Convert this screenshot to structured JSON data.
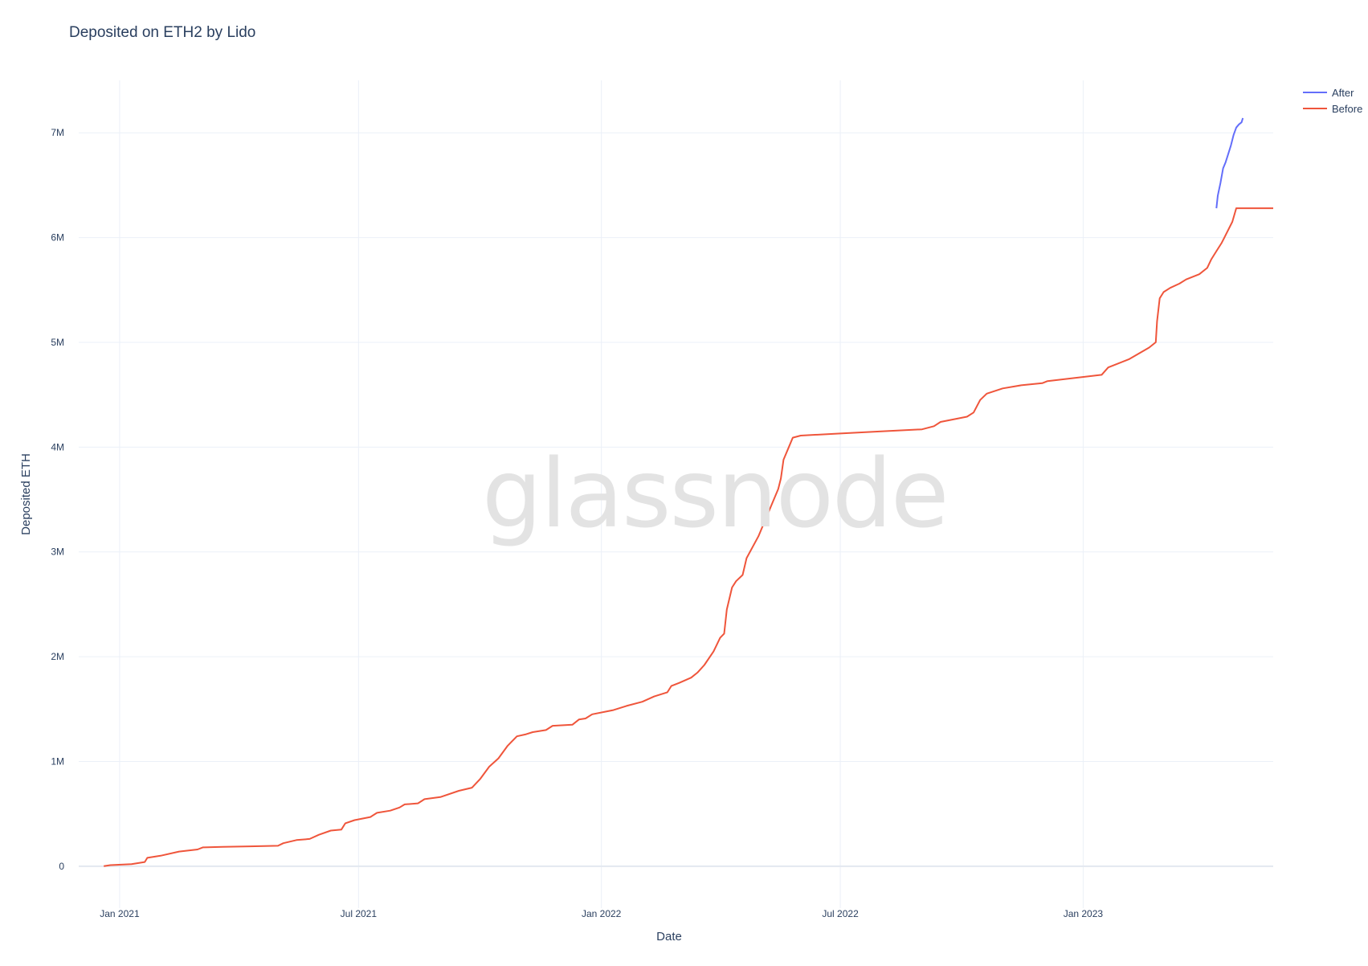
{
  "title": "Deposited on ETH2 by Lido",
  "watermark": "glassnode",
  "chart_data": {
    "type": "line",
    "title": "Deposited on ETH2 by Lido",
    "xlabel": "Date",
    "ylabel": "Deposited ETH",
    "x_range": [
      "2020-12-01",
      "2023-05-25"
    ],
    "ylim": [
      -400000,
      7500000
    ],
    "x_ticks": [
      {
        "date": "2021-01-01",
        "label": "Jan 2021"
      },
      {
        "date": "2021-07-01",
        "label": "Jul 2021"
      },
      {
        "date": "2022-01-01",
        "label": "Jan 2022"
      },
      {
        "date": "2022-07-01",
        "label": "Jul 2022"
      },
      {
        "date": "2023-01-01",
        "label": "Jan 2023"
      }
    ],
    "y_ticks": [
      {
        "value": 0,
        "label": "0"
      },
      {
        "value": 1000000,
        "label": "1M"
      },
      {
        "value": 2000000,
        "label": "2M"
      },
      {
        "value": 3000000,
        "label": "3M"
      },
      {
        "value": 4000000,
        "label": "4M"
      },
      {
        "value": 5000000,
        "label": "5M"
      },
      {
        "value": 6000000,
        "label": "6M"
      },
      {
        "value": 7000000,
        "label": "7M"
      }
    ],
    "grid": true,
    "legend_position": "top-right",
    "series": [
      {
        "name": "After",
        "color": "#636efa",
        "points": [
          [
            "2023-04-12",
            6280000
          ],
          [
            "2023-04-13",
            6400000
          ],
          [
            "2023-04-15",
            6520000
          ],
          [
            "2023-04-17",
            6660000
          ],
          [
            "2023-04-19",
            6720000
          ],
          [
            "2023-04-21",
            6800000
          ],
          [
            "2023-04-23",
            6880000
          ],
          [
            "2023-04-25",
            6980000
          ],
          [
            "2023-04-27",
            7050000
          ],
          [
            "2023-04-29",
            7080000
          ],
          [
            "2023-05-01",
            7100000
          ],
          [
            "2023-05-02",
            7140000
          ]
        ]
      },
      {
        "name": "Before",
        "color": "#ef553b",
        "points": [
          [
            "2020-12-20",
            0
          ],
          [
            "2020-12-25",
            10000
          ],
          [
            "2021-01-10",
            20000
          ],
          [
            "2021-01-20",
            40000
          ],
          [
            "2021-01-22",
            80000
          ],
          [
            "2021-02-01",
            100000
          ],
          [
            "2021-02-15",
            140000
          ],
          [
            "2021-03-01",
            160000
          ],
          [
            "2021-03-05",
            180000
          ],
          [
            "2021-03-20",
            185000
          ],
          [
            "2021-04-10",
            190000
          ],
          [
            "2021-05-01",
            195000
          ],
          [
            "2021-05-05",
            220000
          ],
          [
            "2021-05-15",
            250000
          ],
          [
            "2021-05-25",
            260000
          ],
          [
            "2021-06-01",
            300000
          ],
          [
            "2021-06-10",
            340000
          ],
          [
            "2021-06-18",
            350000
          ],
          [
            "2021-06-21",
            410000
          ],
          [
            "2021-06-28",
            440000
          ],
          [
            "2021-07-10",
            470000
          ],
          [
            "2021-07-15",
            510000
          ],
          [
            "2021-07-25",
            530000
          ],
          [
            "2021-08-01",
            560000
          ],
          [
            "2021-08-05",
            590000
          ],
          [
            "2021-08-15",
            600000
          ],
          [
            "2021-08-20",
            640000
          ],
          [
            "2021-09-01",
            660000
          ],
          [
            "2021-09-15",
            720000
          ],
          [
            "2021-09-25",
            750000
          ],
          [
            "2021-10-01",
            830000
          ],
          [
            "2021-10-08",
            950000
          ],
          [
            "2021-10-15",
            1030000
          ],
          [
            "2021-10-22",
            1150000
          ],
          [
            "2021-10-29",
            1240000
          ],
          [
            "2021-11-05",
            1260000
          ],
          [
            "2021-11-10",
            1280000
          ],
          [
            "2021-11-20",
            1300000
          ],
          [
            "2021-11-25",
            1340000
          ],
          [
            "2021-12-10",
            1350000
          ],
          [
            "2021-12-15",
            1400000
          ],
          [
            "2021-12-20",
            1410000
          ],
          [
            "2021-12-25",
            1450000
          ],
          [
            "2022-01-10",
            1490000
          ],
          [
            "2022-01-20",
            1530000
          ],
          [
            "2022-02-01",
            1570000
          ],
          [
            "2022-02-10",
            1620000
          ],
          [
            "2022-02-20",
            1660000
          ],
          [
            "2022-02-23",
            1720000
          ],
          [
            "2022-03-01",
            1750000
          ],
          [
            "2022-03-10",
            1800000
          ],
          [
            "2022-03-15",
            1850000
          ],
          [
            "2022-03-20",
            1920000
          ],
          [
            "2022-03-27",
            2050000
          ],
          [
            "2022-04-01",
            2180000
          ],
          [
            "2022-04-04",
            2220000
          ],
          [
            "2022-04-06",
            2450000
          ],
          [
            "2022-04-10",
            2660000
          ],
          [
            "2022-04-13",
            2720000
          ],
          [
            "2022-04-18",
            2780000
          ],
          [
            "2022-04-21",
            2940000
          ],
          [
            "2022-04-30",
            3150000
          ],
          [
            "2022-05-05",
            3300000
          ],
          [
            "2022-05-10",
            3450000
          ],
          [
            "2022-05-15",
            3600000
          ],
          [
            "2022-05-17",
            3700000
          ],
          [
            "2022-05-19",
            3880000
          ],
          [
            "2022-05-23",
            4000000
          ],
          [
            "2022-05-26",
            4090000
          ],
          [
            "2022-06-01",
            4110000
          ],
          [
            "2022-07-01",
            4130000
          ],
          [
            "2022-08-01",
            4150000
          ],
          [
            "2022-09-01",
            4170000
          ],
          [
            "2022-09-10",
            4200000
          ],
          [
            "2022-09-15",
            4240000
          ],
          [
            "2022-10-05",
            4290000
          ],
          [
            "2022-10-10",
            4330000
          ],
          [
            "2022-10-15",
            4450000
          ],
          [
            "2022-10-20",
            4510000
          ],
          [
            "2022-11-01",
            4560000
          ],
          [
            "2022-11-15",
            4590000
          ],
          [
            "2022-12-01",
            4610000
          ],
          [
            "2022-12-05",
            4630000
          ],
          [
            "2023-01-15",
            4690000
          ],
          [
            "2023-01-20",
            4760000
          ],
          [
            "2023-02-05",
            4840000
          ],
          [
            "2023-02-20",
            4950000
          ],
          [
            "2023-02-25",
            5000000
          ],
          [
            "2023-02-26",
            5200000
          ],
          [
            "2023-02-28",
            5420000
          ],
          [
            "2023-03-03",
            5480000
          ],
          [
            "2023-03-08",
            5520000
          ],
          [
            "2023-03-15",
            5560000
          ],
          [
            "2023-03-20",
            5600000
          ],
          [
            "2023-03-30",
            5650000
          ],
          [
            "2023-04-05",
            5710000
          ],
          [
            "2023-04-08",
            5790000
          ],
          [
            "2023-04-12",
            5870000
          ],
          [
            "2023-04-16",
            5950000
          ],
          [
            "2023-04-20",
            6050000
          ],
          [
            "2023-04-24",
            6150000
          ],
          [
            "2023-04-27",
            6280000
          ],
          [
            "2023-05-25",
            6280000
          ]
        ]
      }
    ]
  }
}
